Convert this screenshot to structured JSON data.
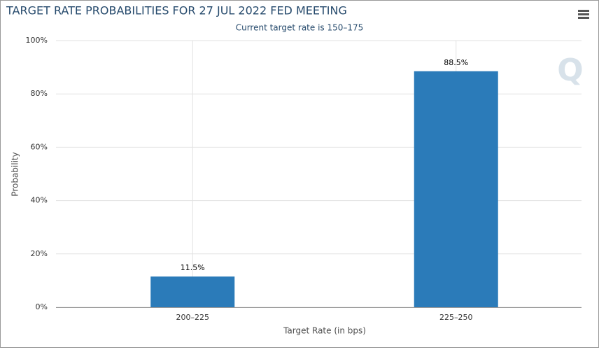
{
  "chart_data": {
    "type": "bar",
    "title": "TARGET RATE PROBABILITIES FOR 27 JUL 2022 FED MEETING",
    "subtitle": "Current target rate is 150–175",
    "x_label": "Target Rate (in bps)",
    "y_label": "Probability",
    "categories": [
      "200–225",
      "225–250"
    ],
    "values": [
      11.5,
      88.5
    ],
    "value_labels": [
      "11.5%",
      "88.5%"
    ],
    "color": "#2b7bb9",
    "ylim": [
      0,
      100
    ],
    "yticks": [
      {
        "value": 0,
        "label": "0%"
      },
      {
        "value": 20,
        "label": "20%"
      },
      {
        "value": 40,
        "label": "40%"
      },
      {
        "value": 60,
        "label": "60%"
      },
      {
        "value": 80,
        "label": "80%"
      },
      {
        "value": 100,
        "label": "100%"
      }
    ],
    "grid": true
  }
}
